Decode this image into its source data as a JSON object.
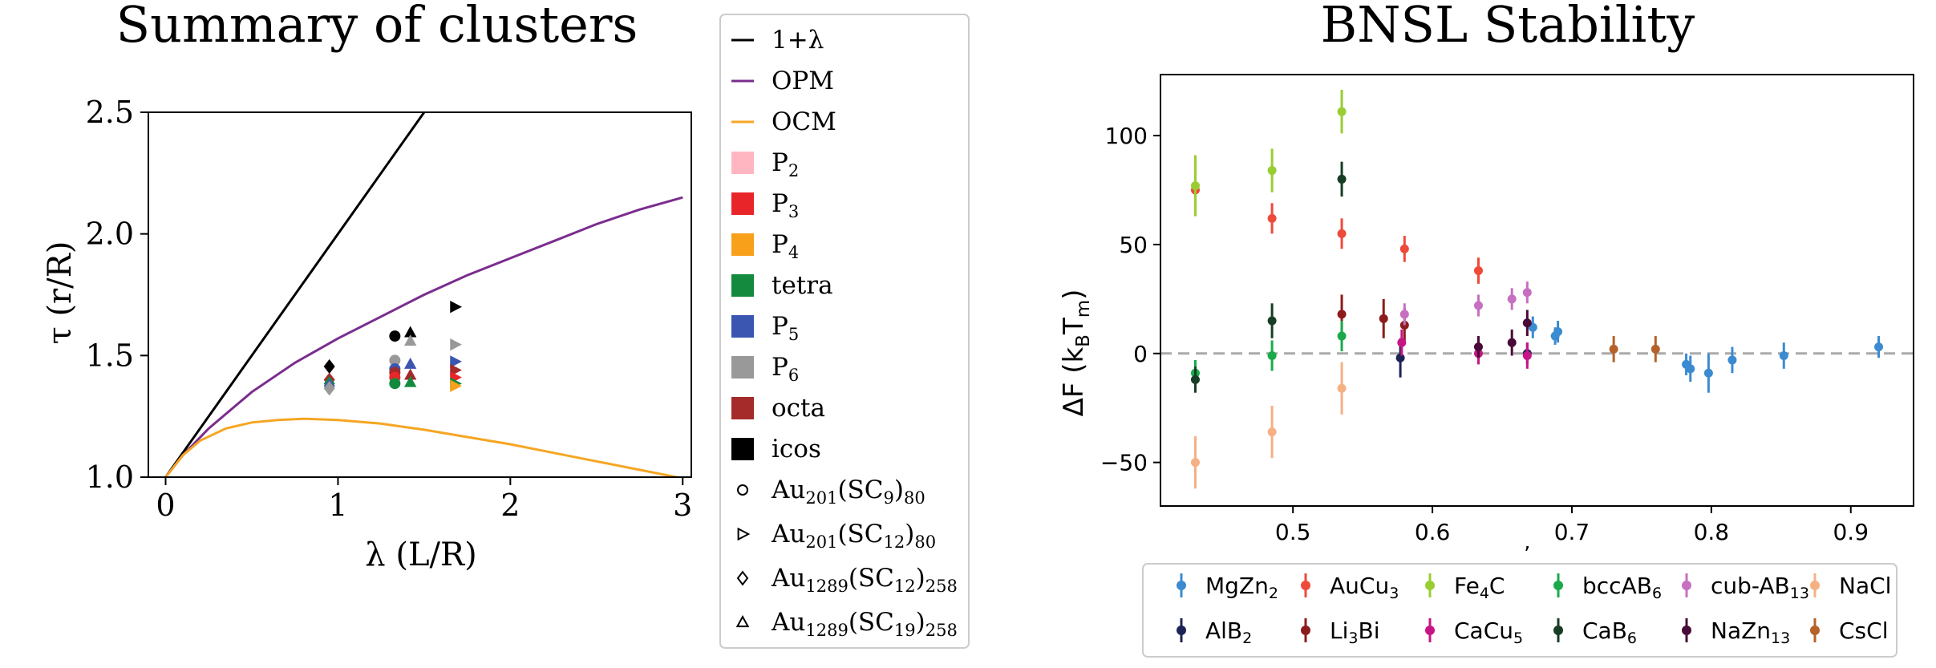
{
  "chart_data": [
    {
      "type": "line",
      "title": "Summary of clusters",
      "xlabel": "λ (L/R)",
      "ylabel": "τ (r/R)",
      "xlim": [
        -0.1,
        3.05
      ],
      "ylim": [
        1.0,
        2.5
      ],
      "xticks": [
        0,
        1,
        2,
        3
      ],
      "yticks": [
        1.0,
        1.5,
        2.0,
        2.5
      ],
      "xtick_labels": [
        "0",
        "1",
        "2",
        "3"
      ],
      "ytick_labels": [
        "1.0",
        "1.5",
        "2.0",
        "2.5"
      ],
      "grid": false,
      "legend_position": "outside-right",
      "colors": {
        "line_1plus": "#000000",
        "OPM": "#7b2d8e",
        "OCM": "#f5a623",
        "P2": "#ffb6c1",
        "P3": "#e8262a",
        "P4": "#f9a01b",
        "tetra": "#138a3e",
        "P5": "#3a56b0",
        "P6": "#999999",
        "octa": "#a52a2a",
        "icos": "#000000"
      },
      "series": [
        {
          "name": "1+λ",
          "kind": "line",
          "color_key": "line_1plus",
          "x": [
            0,
            1.5
          ],
          "y": [
            1.0,
            2.5
          ]
        },
        {
          "name": "OPM",
          "kind": "line",
          "color_key": "OPM",
          "x": [
            0,
            0.1,
            0.25,
            0.5,
            0.75,
            1.0,
            1.25,
            1.5,
            1.75,
            2.0,
            2.25,
            2.5,
            2.75,
            3.0
          ],
          "y": [
            1.0,
            1.09,
            1.2,
            1.35,
            1.47,
            1.57,
            1.66,
            1.75,
            1.83,
            1.9,
            1.97,
            2.04,
            2.1,
            2.15
          ]
        },
        {
          "name": "OCM",
          "kind": "line",
          "color_key": "OCM",
          "x": [
            0,
            0.1,
            0.2,
            0.35,
            0.5,
            0.65,
            0.8,
            1.0,
            1.25,
            1.5,
            1.75,
            2.0,
            2.25,
            2.5,
            2.75,
            3.0
          ],
          "y": [
            1.0,
            1.09,
            1.15,
            1.2,
            1.225,
            1.235,
            1.24,
            1.235,
            1.22,
            1.195,
            1.165,
            1.135,
            1.1,
            1.065,
            1.03,
            0.995
          ]
        }
      ],
      "clusters": [
        {
          "x": 0.95,
          "y": 1.455,
          "color_key": "icos",
          "marker": "diamond"
        },
        {
          "x": 0.95,
          "y": 1.4,
          "color_key": "octa",
          "marker": "diamond"
        },
        {
          "x": 0.95,
          "y": 1.385,
          "color_key": "tetra",
          "marker": "diamond"
        },
        {
          "x": 0.95,
          "y": 1.375,
          "color_key": "P5",
          "marker": "diamond"
        },
        {
          "x": 0.95,
          "y": 1.365,
          "color_key": "P6",
          "marker": "diamond"
        },
        {
          "x": 1.33,
          "y": 1.58,
          "color_key": "icos",
          "marker": "circle"
        },
        {
          "x": 1.33,
          "y": 1.48,
          "color_key": "P6",
          "marker": "circle"
        },
        {
          "x": 1.33,
          "y": 1.445,
          "color_key": "P5",
          "marker": "circle"
        },
        {
          "x": 1.33,
          "y": 1.43,
          "color_key": "octa",
          "marker": "circle"
        },
        {
          "x": 1.33,
          "y": 1.41,
          "color_key": "P3",
          "marker": "circle"
        },
        {
          "x": 1.33,
          "y": 1.385,
          "color_key": "tetra",
          "marker": "circle"
        },
        {
          "x": 1.42,
          "y": 1.595,
          "color_key": "icos",
          "marker": "triangle"
        },
        {
          "x": 1.42,
          "y": 1.56,
          "color_key": "P6",
          "marker": "triangle"
        },
        {
          "x": 1.42,
          "y": 1.465,
          "color_key": "P5",
          "marker": "triangle"
        },
        {
          "x": 1.42,
          "y": 1.42,
          "color_key": "octa",
          "marker": "triangle"
        },
        {
          "x": 1.42,
          "y": 1.39,
          "color_key": "tetra",
          "marker": "triangle"
        },
        {
          "x": 1.68,
          "y": 1.7,
          "color_key": "icos",
          "marker": "right"
        },
        {
          "x": 1.68,
          "y": 1.545,
          "color_key": "P6",
          "marker": "right"
        },
        {
          "x": 1.68,
          "y": 1.475,
          "color_key": "P5",
          "marker": "right"
        },
        {
          "x": 1.68,
          "y": 1.44,
          "color_key": "octa",
          "marker": "right"
        },
        {
          "x": 1.68,
          "y": 1.41,
          "color_key": "P3",
          "marker": "right"
        },
        {
          "x": 1.68,
          "y": 1.385,
          "color_key": "tetra",
          "marker": "right"
        },
        {
          "x": 1.68,
          "y": 1.375,
          "color_key": "P4",
          "marker": "right"
        }
      ],
      "legend": {
        "lines": [
          {
            "label": "1+λ",
            "color_key": "line_1plus"
          },
          {
            "label": "OPM",
            "color_key": "OPM"
          },
          {
            "label": "OCM",
            "color_key": "OCM"
          }
        ],
        "squares": [
          {
            "label": "P",
            "sub": "2",
            "color_key": "P2"
          },
          {
            "label": "P",
            "sub": "3",
            "color_key": "P3"
          },
          {
            "label": "P",
            "sub": "4",
            "color_key": "P4"
          },
          {
            "label": "tetra",
            "sub": "",
            "color_key": "tetra"
          },
          {
            "label": "P",
            "sub": "5",
            "color_key": "P5"
          },
          {
            "label": "P",
            "sub": "6",
            "color_key": "P6"
          },
          {
            "label": "octa",
            "sub": "",
            "color_key": "octa"
          },
          {
            "label": "icos",
            "sub": "",
            "color_key": "icos"
          }
        ],
        "markers": [
          {
            "marker": "circle",
            "parts": [
              [
                "Au",
                ""
              ],
              [
                "201",
                "sub"
              ],
              [
                "(SC",
                ""
              ],
              [
                "9",
                "sub"
              ],
              [
                ")",
                ""
              ],
              [
                "80",
                "sub"
              ]
            ]
          },
          {
            "marker": "right",
            "parts": [
              [
                "Au",
                ""
              ],
              [
                "201",
                "sub"
              ],
              [
                "(SC",
                ""
              ],
              [
                "12",
                "sub"
              ],
              [
                ")",
                ""
              ],
              [
                "80",
                "sub"
              ]
            ]
          },
          {
            "marker": "diamond",
            "parts": [
              [
                "Au",
                ""
              ],
              [
                "1289",
                "sub"
              ],
              [
                "(SC",
                ""
              ],
              [
                "12",
                "sub"
              ],
              [
                ")",
                ""
              ],
              [
                "258",
                "sub"
              ]
            ]
          },
          {
            "marker": "triangle",
            "parts": [
              [
                "Au",
                ""
              ],
              [
                "1289",
                "sub"
              ],
              [
                "(SC",
                ""
              ],
              [
                "19",
                "sub"
              ],
              [
                ")",
                ""
              ],
              [
                "258",
                "sub"
              ]
            ]
          }
        ]
      }
    },
    {
      "type": "scatter",
      "title": "BNSL Stability",
      "ylabel": "ΔF (k_B T_m)",
      "ylabel_parts": [
        [
          "ΔF (k",
          ""
        ],
        [
          "B",
          "sub"
        ],
        [
          "T",
          ""
        ],
        [
          "m",
          "sub"
        ],
        [
          ")",
          ""
        ]
      ],
      "xlabel": "",
      "stray_mark": "’",
      "xlim": [
        0.405,
        0.945
      ],
      "ylim": [
        -70,
        128
      ],
      "xticks": [
        0.5,
        0.6,
        0.7,
        0.8,
        0.9
      ],
      "yticks": [
        -50,
        0,
        50,
        100
      ],
      "xtick_labels": [
        "0.5",
        "0.6",
        "0.7",
        "0.8",
        "0.9"
      ],
      "ytick_labels": [
        "−50",
        "0",
        "50",
        "100"
      ],
      "reference_line_y": 0,
      "grid": false,
      "legend_position": "bottom",
      "series": [
        {
          "name": "MgZn₂",
          "parts": [
            [
              "MgZn",
              ""
            ],
            [
              "2",
              "sub"
            ]
          ],
          "color": "#3b8bd0",
          "points": [
            [
              0.672,
              12,
              5
            ],
            [
              0.69,
              10,
              5
            ],
            [
              0.688,
              8,
              4
            ],
            [
              0.782,
              -5,
              5
            ],
            [
              0.785,
              -7,
              6
            ],
            [
              0.798,
              -9,
              9
            ],
            [
              0.815,
              -3,
              6
            ],
            [
              0.852,
              -1,
              6
            ],
            [
              0.92,
              3,
              5
            ]
          ]
        },
        {
          "name": "AlB₂",
          "parts": [
            [
              "AlB",
              ""
            ],
            [
              "2",
              "sub"
            ]
          ],
          "color": "#1e2356",
          "points": [
            [
              0.577,
              -2,
              9
            ],
            [
              0.668,
              0,
              5
            ]
          ]
        },
        {
          "name": "AuCu₃",
          "parts": [
            [
              "AuCu",
              ""
            ],
            [
              "3",
              "sub"
            ]
          ],
          "color": "#ee4a3a",
          "points": [
            [
              0.43,
              75,
              7
            ],
            [
              0.485,
              62,
              7
            ],
            [
              0.535,
              55,
              7
            ],
            [
              0.58,
              48,
              6
            ],
            [
              0.633,
              38,
              6
            ]
          ]
        },
        {
          "name": "Li₃Bi",
          "parts": [
            [
              "Li",
              ""
            ],
            [
              "3",
              "sub"
            ],
            [
              "Bi",
              ""
            ]
          ],
          "color": "#8c1c1c",
          "points": [
            [
              0.535,
              18,
              9
            ],
            [
              0.565,
              16,
              9
            ],
            [
              0.58,
              13,
              8
            ]
          ]
        },
        {
          "name": "Fe₄C",
          "parts": [
            [
              "Fe",
              ""
            ],
            [
              "4",
              "sub"
            ],
            [
              "C",
              ""
            ]
          ],
          "color": "#9acd32",
          "points": [
            [
              0.43,
              77,
              14
            ],
            [
              0.485,
              84,
              10
            ],
            [
              0.535,
              111,
              10
            ]
          ]
        },
        {
          "name": "CaCu₅",
          "parts": [
            [
              "CaCu",
              ""
            ],
            [
              "5",
              "sub"
            ]
          ],
          "color": "#c71585",
          "points": [
            [
              0.578,
              5,
              6
            ],
            [
              0.633,
              0,
              5
            ],
            [
              0.668,
              -1,
              6
            ]
          ]
        },
        {
          "name": "bccAB₆",
          "parts": [
            [
              "bccAB",
              ""
            ],
            [
              "6",
              "sub"
            ]
          ],
          "color": "#1aaa4a",
          "points": [
            [
              0.43,
              -9,
              6
            ],
            [
              0.485,
              -1,
              7
            ],
            [
              0.535,
              8,
              7
            ]
          ]
        },
        {
          "name": "CaB₆",
          "parts": [
            [
              "CaB",
              ""
            ],
            [
              "6",
              "sub"
            ]
          ],
          "color": "#173d24",
          "points": [
            [
              0.43,
              -12,
              6
            ],
            [
              0.485,
              15,
              8
            ],
            [
              0.535,
              80,
              8
            ]
          ]
        },
        {
          "name": "cub-AB₁₃",
          "parts": [
            [
              "cub-AB",
              ""
            ],
            [
              "13",
              "sub"
            ]
          ],
          "color": "#c76fc0",
          "points": [
            [
              0.58,
              18,
              5
            ],
            [
              0.633,
              22,
              5
            ],
            [
              0.657,
              25,
              5
            ],
            [
              0.668,
              28,
              5
            ]
          ]
        },
        {
          "name": "NaZn₁₃",
          "parts": [
            [
              "NaZn",
              ""
            ],
            [
              "13",
              "sub"
            ]
          ],
          "color": "#4a0a38",
          "points": [
            [
              0.633,
              3,
              5
            ],
            [
              0.657,
              5,
              6
            ],
            [
              0.668,
              14,
              6
            ]
          ]
        },
        {
          "name": "NaCl",
          "parts": [
            [
              "NaCl",
              ""
            ]
          ],
          "color": "#f5b083",
          "points": [
            [
              0.43,
              -50,
              12
            ],
            [
              0.485,
              -36,
              12
            ],
            [
              0.535,
              -16,
              12
            ]
          ]
        },
        {
          "name": "CsCl",
          "parts": [
            [
              "CsCl",
              ""
            ]
          ],
          "color": "#b5612a",
          "points": [
            [
              0.73,
              2,
              6
            ],
            [
              0.76,
              2,
              6
            ]
          ]
        }
      ]
    }
  ]
}
